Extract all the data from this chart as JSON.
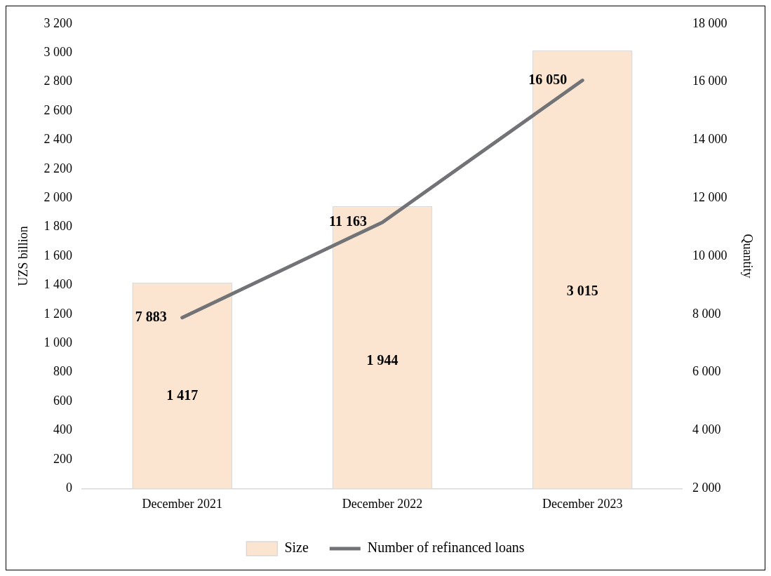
{
  "chart_data": {
    "type": "bar",
    "categories": [
      "December 2021",
      "December 2022",
      "December 2023"
    ],
    "series": [
      {
        "name": "Size",
        "color": "#fbe5d0",
        "values": [
          1417,
          1944,
          3015
        ],
        "value_labels": [
          "1 417",
          "1 944",
          "3 015"
        ]
      },
      {
        "name": "Number of refinanced loans",
        "type": "line",
        "axis": "y2",
        "color": "#717377",
        "values": [
          7883,
          11163,
          16050
        ],
        "value_labels": [
          "7 883",
          "11 163",
          "16 050"
        ]
      }
    ],
    "ylabel": "UZS billion",
    "y2label": "Quantity",
    "ylim": [
      0,
      3200
    ],
    "yticks": [
      {
        "value": 0,
        "label": "0"
      },
      {
        "value": 200,
        "label": "200"
      },
      {
        "value": 400,
        "label": "400"
      },
      {
        "value": 600,
        "label": "600"
      },
      {
        "value": 800,
        "label": "800"
      },
      {
        "value": 1000,
        "label": "1 000"
      },
      {
        "value": 1200,
        "label": "1 200"
      },
      {
        "value": 1400,
        "label": "1 400"
      },
      {
        "value": 1600,
        "label": "1 600"
      },
      {
        "value": 1800,
        "label": "1 800"
      },
      {
        "value": 2000,
        "label": "2 000"
      },
      {
        "value": 2200,
        "label": "2 200"
      },
      {
        "value": 2400,
        "label": "2 400"
      },
      {
        "value": 2600,
        "label": "2 600"
      },
      {
        "value": 2800,
        "label": "2 800"
      },
      {
        "value": 3000,
        "label": "3 000"
      },
      {
        "value": 3200,
        "label": "3 200"
      }
    ],
    "y2lim": [
      2000,
      18000
    ],
    "y2ticks": [
      {
        "value": 2000,
        "label": "2 000"
      },
      {
        "value": 4000,
        "label": "4 000"
      },
      {
        "value": 6000,
        "label": "6 000"
      },
      {
        "value": 8000,
        "label": "8 000"
      },
      {
        "value": 10000,
        "label": "10 000"
      },
      {
        "value": 12000,
        "label": "12 000"
      },
      {
        "value": 14000,
        "label": "14 000"
      },
      {
        "value": 16000,
        "label": "16 000"
      },
      {
        "value": 18000,
        "label": "18 000"
      }
    ],
    "grid": false,
    "legend": "bottom",
    "marker": "none",
    "line_style": "solid"
  }
}
